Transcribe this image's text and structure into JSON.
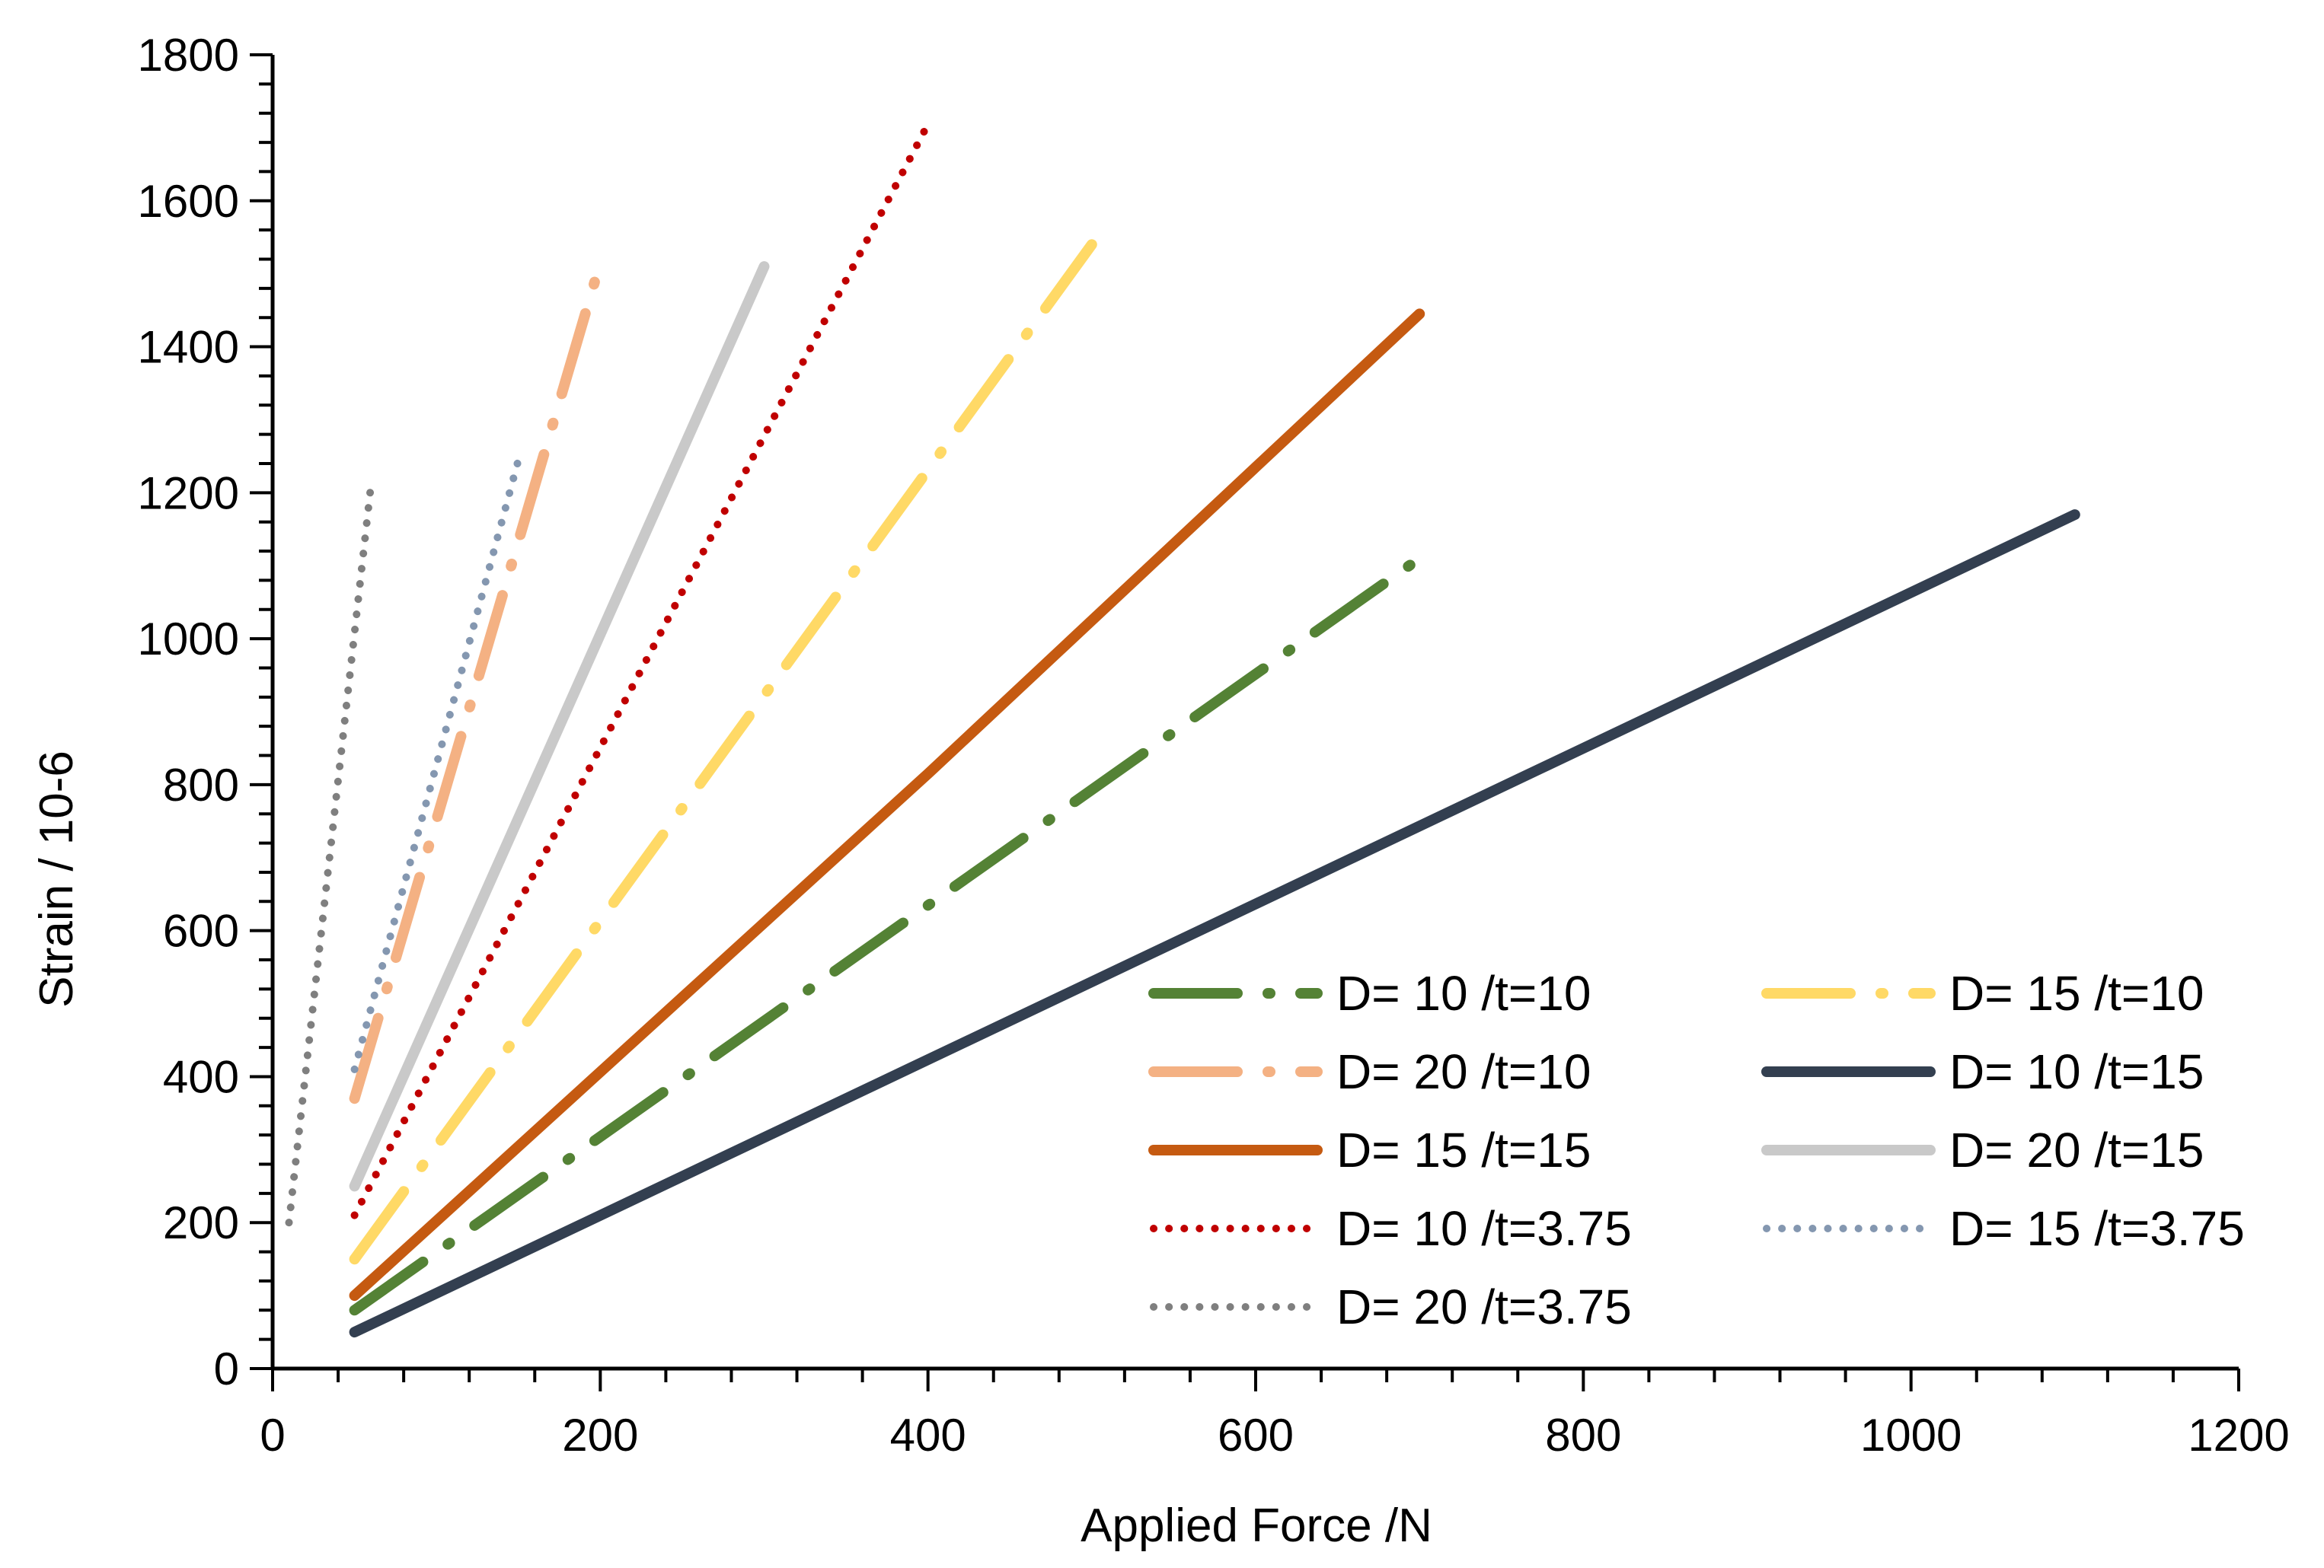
{
  "chart_data": {
    "type": "line",
    "title": "",
    "xlabel": "Applied Force /N",
    "ylabel": "Strain / 10-6",
    "xlim": [
      0,
      1200
    ],
    "ylim": [
      0,
      1800
    ],
    "xticks": [
      "0",
      "200",
      "400",
      "600",
      "800",
      "1000",
      "1200"
    ],
    "yticks": [
      "0",
      "200",
      "400",
      "600",
      "800",
      "1000",
      "1200",
      "1400",
      "1600",
      "1800"
    ],
    "grid": false,
    "legend_position": "lower-right",
    "series": [
      {
        "name": "D= 10 /t=10",
        "color": "#548235",
        "dash": "longdashdot",
        "x": [
          50,
          700
        ],
        "y": [
          80,
          1110
        ]
      },
      {
        "name": "D= 15 /t=10",
        "color": "#FFD966",
        "dash": "longdashdot",
        "x": [
          50,
          500
        ],
        "y": [
          150,
          1540
        ]
      },
      {
        "name": "D= 20 /t=10",
        "color": "#F4B183",
        "dash": "longdashdot",
        "x": [
          50,
          200
        ],
        "y": [
          370,
          1515
        ]
      },
      {
        "name": "D= 10 /t=15",
        "color": "#333F50",
        "dash": "solid",
        "x": [
          50,
          1100
        ],
        "y": [
          50,
          1170
        ]
      },
      {
        "name": "D= 15 /t=15",
        "color": "#C55A11",
        "dash": "solid",
        "x": [
          50,
          400,
          700
        ],
        "y": [
          100,
          815,
          1445
        ]
      },
      {
        "name": "D= 20 /t=15",
        "color": "#C9C9C9",
        "dash": "solid",
        "x": [
          50,
          300
        ],
        "y": [
          250,
          1510
        ]
      },
      {
        "name": "D= 10 /t=3.75",
        "color": "#C00000",
        "dash": "dot",
        "x": [
          50,
          400
        ],
        "y": [
          210,
          1705
        ]
      },
      {
        "name": "D= 15 /t=3.75",
        "color": "#8497B0",
        "dash": "dot",
        "x": [
          50,
          150
        ],
        "y": [
          410,
          1245
        ]
      },
      {
        "name": "D= 20 /t=3.75",
        "color": "#7F7F7F",
        "dash": "dot",
        "x": [
          10,
          60
        ],
        "y": [
          200,
          1210
        ]
      }
    ]
  }
}
